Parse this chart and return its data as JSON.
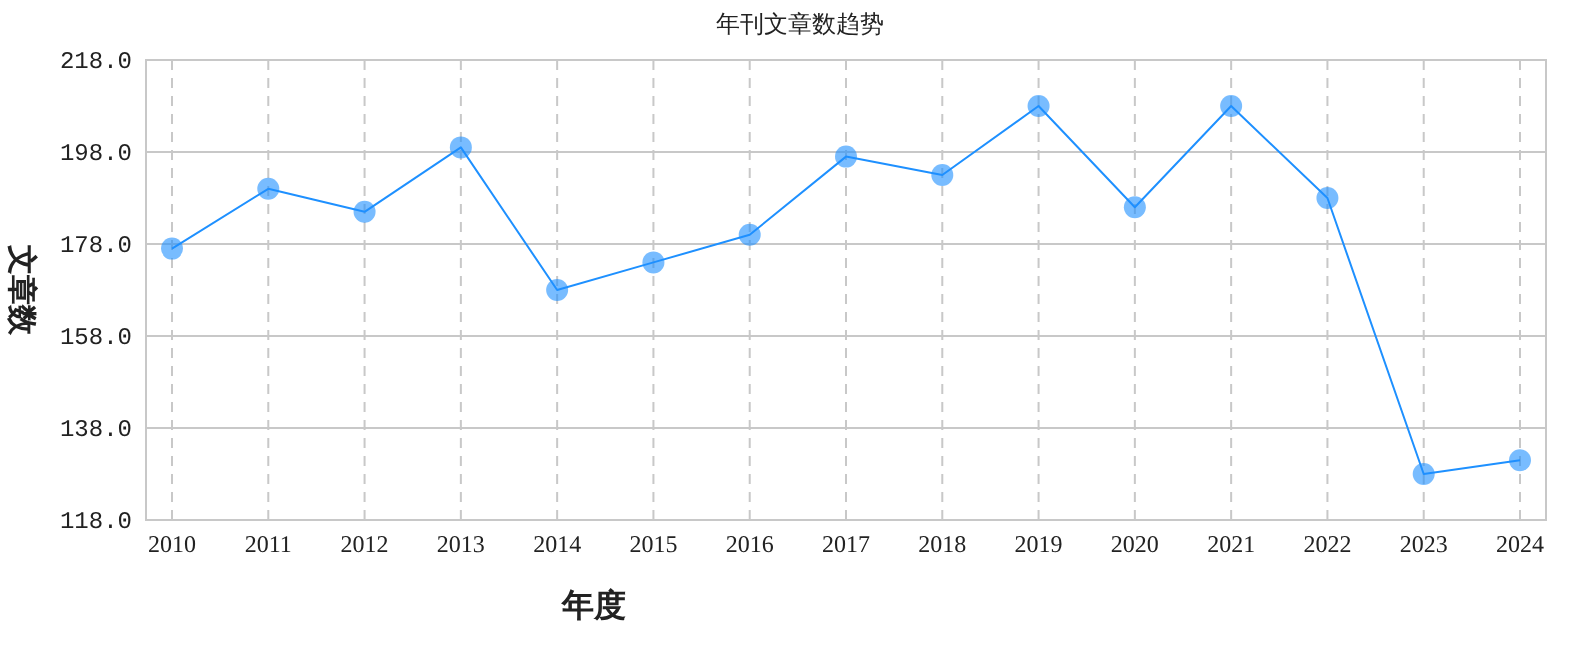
{
  "chart_data": {
    "type": "line",
    "title": "年刊文章数趋势",
    "xlabel": "年度",
    "ylabel": "文章数",
    "categories": [
      "2010",
      "2011",
      "2012",
      "2013",
      "2014",
      "2015",
      "2016",
      "2017",
      "2018",
      "2019",
      "2020",
      "2021",
      "2022",
      "2023",
      "2024"
    ],
    "series": [
      {
        "color": "#1e90ff",
        "values": [
          177,
          190,
          185,
          199,
          168,
          174,
          180,
          197,
          193,
          208,
          186,
          208,
          188,
          128,
          131
        ]
      }
    ],
    "ylim": [
      118,
      218
    ],
    "yticks": [
      {
        "value": 118,
        "label": "118.0"
      },
      {
        "value": 138,
        "label": "138.0"
      },
      {
        "value": 158,
        "label": "158.0"
      },
      {
        "value": 178,
        "label": "178.0"
      },
      {
        "value": 198,
        "label": "198.0"
      },
      {
        "value": 218,
        "label": "218.0"
      }
    ],
    "grid": true,
    "marker": "circle",
    "line_style": "solid"
  }
}
